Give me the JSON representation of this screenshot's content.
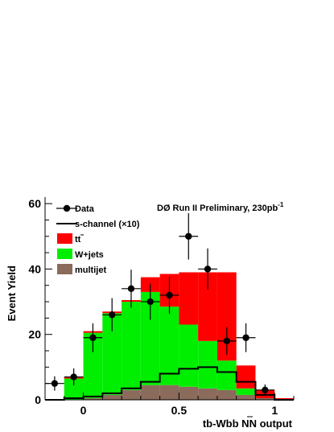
{
  "chart_data": {
    "type": "bar",
    "title": "DØ Run II Preliminary, 230pb",
    "title_superscript": "-1",
    "xlabel": "tb-Wbb NN output",
    "ylabel": "Event Yield",
    "xlim": [
      -0.2,
      1.1
    ],
    "ylim": [
      0,
      62
    ],
    "x_ticks": [
      0,
      0.5,
      1
    ],
    "x_tick_labels": [
      "0",
      "0.5",
      "1"
    ],
    "y_ticks": [
      0,
      20,
      40,
      60
    ],
    "y_tick_labels": [
      "0",
      "20",
      "40",
      "60"
    ],
    "grid": false,
    "legend_position": "top-left",
    "bin_edges": [
      -0.2,
      -0.1,
      0,
      0.1,
      0.2,
      0.3,
      0.4,
      0.5,
      0.6,
      0.7,
      0.8,
      0.9,
      1.0,
      1.1
    ],
    "stack": [
      {
        "name": "multijet",
        "color": "#8b6b5c",
        "values": [
          0,
          0,
          0.5,
          1.5,
          3,
          4.5,
          4.5,
          4,
          3.5,
          3,
          1.5,
          0.5,
          0
        ]
      },
      {
        "name": "W+jets",
        "color": "#00ee00",
        "values": [
          0,
          6.5,
          20,
          25,
          27,
          28.5,
          24,
          19,
          14.5,
          9,
          2,
          0,
          0
        ]
      },
      {
        "name": "tt",
        "color": "#ff0000",
        "values": [
          0,
          0.5,
          0.5,
          0.5,
          0.5,
          4.5,
          10,
          16,
          21,
          27,
          7,
          2.5,
          0.5
        ]
      }
    ],
    "s_channel": {
      "name": "s-channel (×10)",
      "color": "#000000",
      "values": [
        0,
        0.5,
        1,
        2,
        3.5,
        5.5,
        8,
        9.5,
        10,
        8.5,
        5.5,
        1.5,
        0
      ]
    },
    "data_points": {
      "name": "Data",
      "x": [
        -0.15,
        -0.05,
        0.05,
        0.15,
        0.25,
        0.35,
        0.45,
        0.55,
        0.65,
        0.75,
        0.85,
        0.95
      ],
      "y": [
        5,
        7,
        19,
        26,
        34,
        30,
        32,
        50,
        40,
        18,
        19,
        3
      ],
      "err_low": [
        2.2,
        2.6,
        4.4,
        5.1,
        5.8,
        5.5,
        5.7,
        7.1,
        6.3,
        4.2,
        4.4,
        1.7
      ],
      "err_high": [
        2.2,
        2.6,
        4.4,
        5.1,
        5.8,
        5.5,
        5.7,
        7.1,
        6.3,
        4.2,
        4.4,
        1.7
      ]
    },
    "legend": [
      {
        "label": "Data",
        "kind": "marker"
      },
      {
        "label": "s-channel (×10)",
        "kind": "line"
      },
      {
        "label": "tt",
        "kind": "fill",
        "color": "#ff0000"
      },
      {
        "label": "W+jets",
        "kind": "fill",
        "color": "#00ee00"
      },
      {
        "label": "multijet",
        "kind": "fill",
        "color": "#8b6b5c"
      }
    ]
  }
}
